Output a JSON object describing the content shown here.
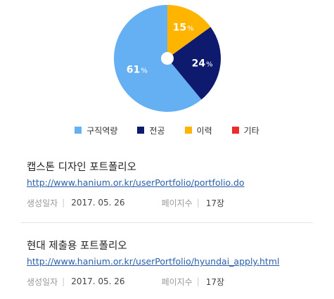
{
  "chart_data": {
    "type": "pie",
    "categories": [
      "구직역량",
      "전공",
      "이력",
      "기타"
    ],
    "values": [
      61,
      24,
      15,
      0
    ],
    "value_labels": [
      "61",
      "24",
      "15",
      ""
    ],
    "unit": "%",
    "colors": [
      "#64b0f2",
      "#0d1a6e",
      "#ffb400",
      "#ee2b2b"
    ],
    "legend_position": "bottom"
  },
  "legend": {
    "items": [
      {
        "label": "구직역량",
        "color": "#64b0f2"
      },
      {
        "label": "전공",
        "color": "#0d1a6e"
      },
      {
        "label": "이력",
        "color": "#ffb400"
      },
      {
        "label": "기타",
        "color": "#ee2b2b"
      }
    ]
  },
  "portfolios": [
    {
      "title": "캡스톤 디자인 포트폴리오",
      "url": "http://www.hanium.or.kr/userPortfolio/portfolio.do",
      "date_label": "생성일자",
      "date": "2017. 05. 26",
      "pages_label": "페이지수",
      "pages": "17장"
    },
    {
      "title": "현대 제출용 포트폴리오",
      "url": "http://www.hanium.or.kr/userPortfolio/hyundai_apply.html",
      "date_label": "생성일자",
      "date": "2017. 05. 26",
      "pages_label": "페이지수",
      "pages": "17장"
    }
  ]
}
